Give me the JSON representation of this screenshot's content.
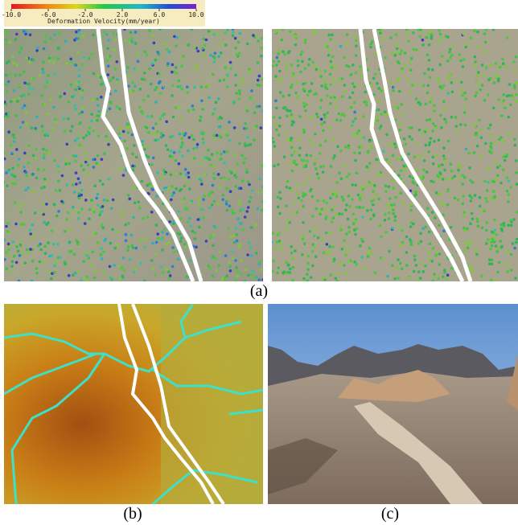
{
  "colorbar": {
    "title": "Deformation Velocity(mm/year)",
    "range": [
      -10,
      10
    ],
    "ticks": [
      {
        "value": -10,
        "label": "-10.0"
      },
      {
        "value": -6,
        "label": "-6.0"
      },
      {
        "value": -2,
        "label": "-2.0"
      },
      {
        "value": 2,
        "label": "2.0"
      },
      {
        "value": 6,
        "label": "6.0"
      },
      {
        "value": 10,
        "label": "10.0"
      }
    ]
  },
  "captions": {
    "a": "(a)",
    "b": "(b)",
    "c": "(c)"
  }
}
